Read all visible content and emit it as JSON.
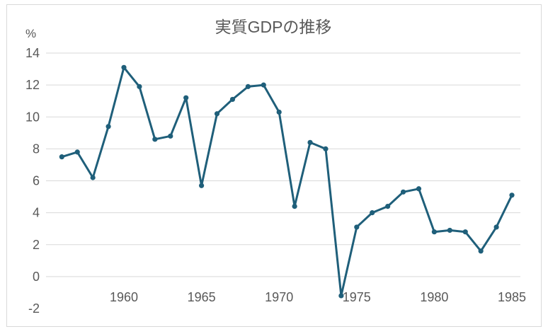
{
  "chart_data": {
    "type": "line",
    "title": "実質GDPの推移",
    "y_unit": "%",
    "ylim": [
      -2,
      14
    ],
    "y_ticks": [
      "14",
      "12",
      "10",
      "8",
      "6",
      "4",
      "2",
      "0",
      "-2"
    ],
    "x_ticks": [
      "1960",
      "1965",
      "1970",
      "1975",
      "1980",
      "1985"
    ],
    "x_tick_values": [
      1960,
      1965,
      1970,
      1975,
      1980,
      1985
    ],
    "grid": true,
    "legend": "none",
    "color": "#1f5f7a",
    "series": [
      {
        "x": [
          1956,
          1957,
          1958,
          1959,
          1960,
          1961,
          1962,
          1963,
          1964,
          1965,
          1966,
          1967,
          1968,
          1969,
          1970,
          1971,
          1972,
          1973,
          1974,
          1975,
          1976,
          1977,
          1978,
          1979,
          1980,
          1981,
          1982,
          1983,
          1984,
          1985
        ],
        "values": [
          7.5,
          7.8,
          6.2,
          9.4,
          13.1,
          11.9,
          8.6,
          8.8,
          11.2,
          5.7,
          10.2,
          11.1,
          11.9,
          12.0,
          10.3,
          4.4,
          8.4,
          8.0,
          -1.2,
          3.1,
          4.0,
          4.4,
          5.3,
          5.5,
          2.8,
          2.9,
          2.8,
          1.6,
          3.1,
          5.1
        ]
      }
    ]
  }
}
